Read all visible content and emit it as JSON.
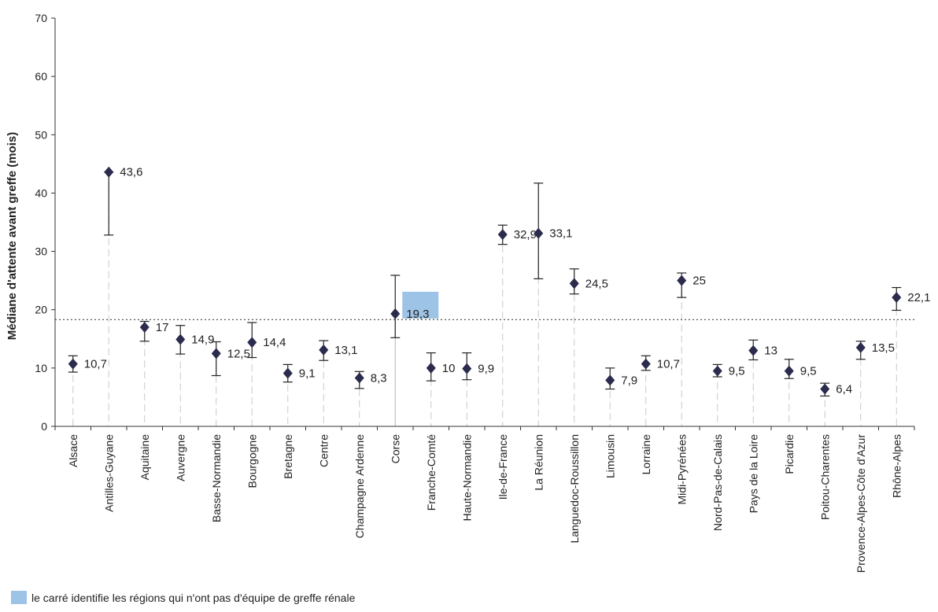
{
  "chart_data": {
    "type": "scatter",
    "ylabel": "Médiane d'attente avant greffe (mois)",
    "ylim": [
      0,
      70
    ],
    "yticks": [
      0,
      10,
      20,
      30,
      40,
      50,
      60,
      70
    ],
    "reference_line": 18.3,
    "categories": [
      "Alsace",
      "Antilles-Guyane",
      "Aquitaine",
      "Auvergne",
      "Basse-Normandie",
      "Bourgogne",
      "Bretagne",
      "Centre",
      "Champagne Ardenne",
      "Corse",
      "Franche-Comté",
      "Haute-Normandie",
      "Ile-de-France",
      "La Réunion",
      "Languedoc-Roussillon",
      "Limousin",
      "Lorraine",
      "Midi-Pyrénées",
      "Nord-Pas-de-Calais",
      "Pays de la Loire",
      "Picardie",
      "Poitou-Charentes",
      "Provence-Alpes-Côte d'Azur",
      "Rhône-Alpes"
    ],
    "values": [
      10.7,
      43.6,
      17,
      14.9,
      12.5,
      14.4,
      9.1,
      13.1,
      8.3,
      19.3,
      10,
      9.9,
      32.9,
      33.1,
      24.5,
      7.9,
      10.7,
      25,
      9.5,
      13,
      9.5,
      6.4,
      13.5,
      22.1
    ],
    "value_labels": [
      "10,7",
      "43,6",
      "17",
      "14,9",
      "12,5",
      "14,4",
      "9,1",
      "13,1",
      "8,3",
      "19,3",
      "10",
      "9,9",
      "32,9",
      "33,1",
      "24,5",
      "7,9",
      "10,7",
      "25",
      "9,5",
      "13",
      "9,5",
      "6,4",
      "13,5",
      "22,1"
    ],
    "ci_low": [
      9.3,
      32.8,
      14.6,
      12.4,
      8.7,
      11.8,
      7.6,
      11.3,
      6.5,
      15.2,
      7.8,
      8.0,
      31.2,
      25.3,
      22.7,
      6.4,
      9.6,
      22.1,
      8.5,
      11.4,
      8.2,
      5.2,
      11.5,
      19.9
    ],
    "ci_high": [
      12.1,
      43.6,
      18.0,
      17.3,
      14.5,
      17.8,
      10.6,
      14.7,
      9.4,
      25.9,
      12.6,
      12.6,
      34.5,
      41.7,
      27.0,
      10.0,
      12.1,
      26.3,
      10.6,
      14.8,
      11.5,
      7.4,
      14.6,
      23.8
    ],
    "no_team_regions": [
      "Corse"
    ],
    "highlight_color": "#9dc3e6",
    "marker_color": "#2b2b4d",
    "legend_text": "le carré identifie les régions qui n'ont pas d'équipe de greffe rénale"
  }
}
